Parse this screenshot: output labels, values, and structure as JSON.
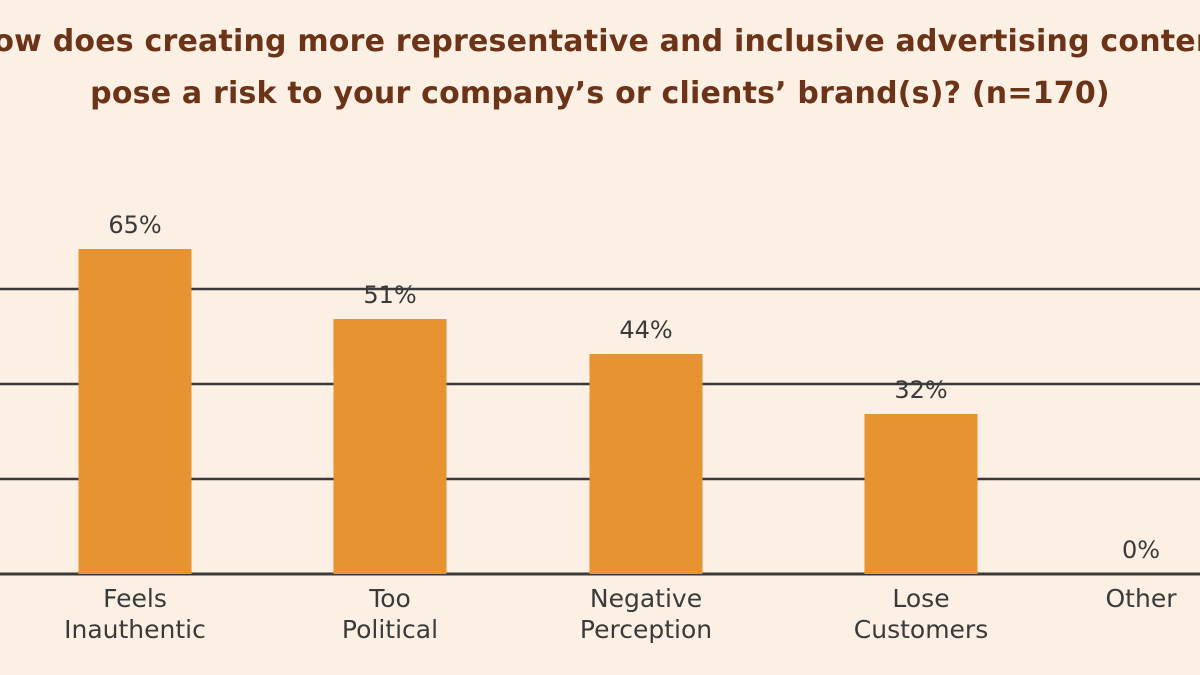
{
  "chart_data": {
    "type": "bar",
    "title_lines": [
      "How does creating more representative and inclusive advertising content",
      "pose a risk to your company’s or clients’ brand(s)? (n=170)"
    ],
    "categories": [
      [
        "Feels",
        "Inauthentic"
      ],
      [
        "Too",
        "Political"
      ],
      [
        "Negative",
        "Perception"
      ],
      [
        "Lose",
        "Customers"
      ],
      [
        "Other"
      ]
    ],
    "values": [
      65,
      51,
      44,
      32,
      0
    ],
    "value_labels": [
      "65%",
      "51%",
      "44%",
      "32%",
      "0%"
    ],
    "ylim": [
      0,
      100
    ],
    "grid": true,
    "colors": {
      "bar": "#e69331",
      "title": "#6b3318",
      "text": "#3a3a3a",
      "grid": "#3a3a3a",
      "background": "#fbf0e3"
    }
  }
}
